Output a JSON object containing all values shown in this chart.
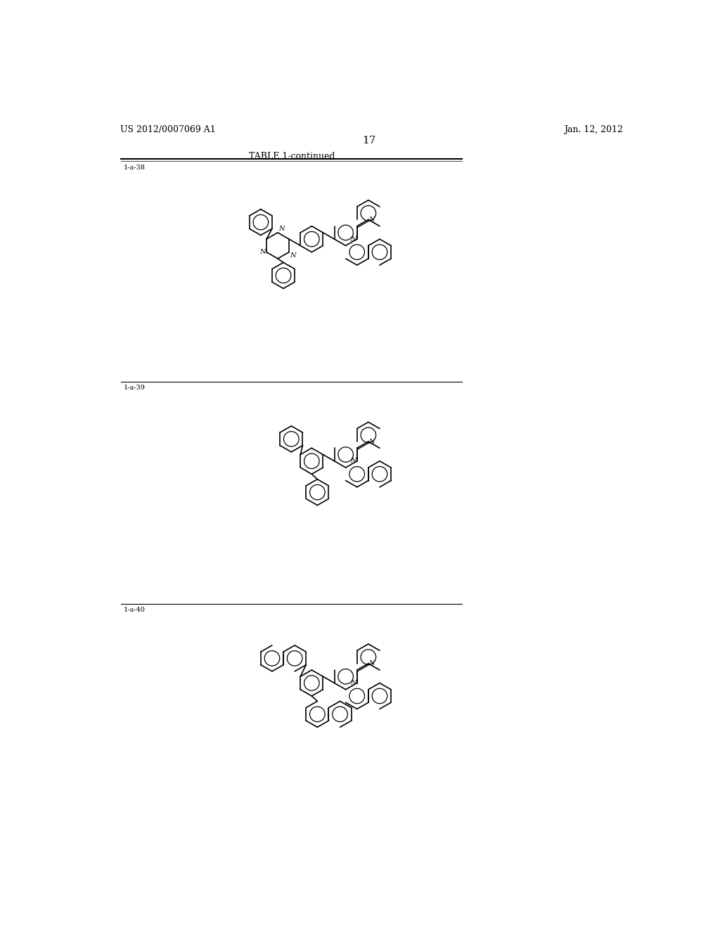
{
  "background_color": "#ffffff",
  "page_header_left": "US 2012/0007069 A1",
  "page_header_right": "Jan. 12, 2012",
  "page_number": "17",
  "table_title": "TABLE 1-continued",
  "label_38": "1-a-38",
  "label_39": "1-a-39",
  "label_40": "1-a-40",
  "line_color": "#000000",
  "text_color": "#000000",
  "font_size_header": 9,
  "font_size_label": 7,
  "font_size_table_title": 9,
  "font_size_page_num": 11,
  "font_size_atom": 7
}
